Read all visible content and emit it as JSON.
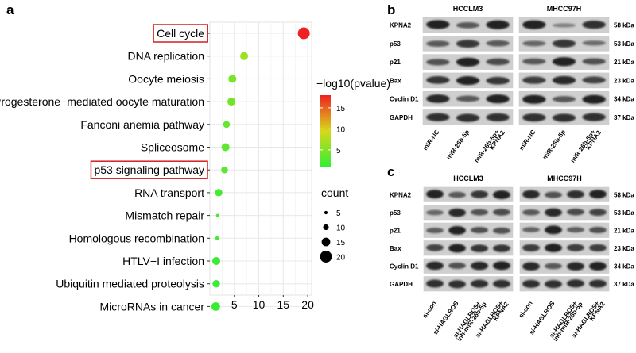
{
  "panel_labels": {
    "a": "a",
    "b": "b",
    "c": "c"
  },
  "chart_data": {
    "type": "scatter",
    "title": "",
    "xlabel": "",
    "ylabel": "",
    "xlim": [
      0,
      20
    ],
    "x_ticks": [
      "5",
      "10",
      "15",
      "20"
    ],
    "x_tick_values": [
      5,
      10,
      15,
      20
    ],
    "categories": [
      "Cell cycle",
      "DNA replication",
      "Oocyte meiosis",
      "Progesterone−mediated oocyte maturation",
      "Fanconi anemia pathway",
      "Spliceosome",
      "p53 signaling pathway",
      "RNA transport",
      "Mismatch repair",
      "Homologous recombination",
      "HTLV−I infection",
      "Ubiquitin mediated proteolysis",
      "MicroRNAs in cancer"
    ],
    "points": [
      {
        "term": "Cell cycle",
        "x": 19.2,
        "count": 20,
        "neglog10p": 18,
        "boxed": true
      },
      {
        "term": "DNA replication",
        "x": 7.0,
        "count": 14,
        "neglog10p": 6.5
      },
      {
        "term": "Oocyte meiosis",
        "x": 4.6,
        "count": 14,
        "neglog10p": 4.5
      },
      {
        "term": "Progesterone−mediated oocyte maturation",
        "x": 4.4,
        "count": 14,
        "neglog10p": 4.3
      },
      {
        "term": "Fanconi anemia pathway",
        "x": 3.4,
        "count": 12,
        "neglog10p": 3.4
      },
      {
        "term": "Spliceosome",
        "x": 3.2,
        "count": 14,
        "neglog10p": 3.2
      },
      {
        "term": "p53 signaling pathway",
        "x": 3.0,
        "count": 12,
        "neglog10p": 3.0,
        "boxed": true
      },
      {
        "term": "RNA transport",
        "x": 1.8,
        "count": 13,
        "neglog10p": 1.8
      },
      {
        "term": "Mismatch repair",
        "x": 1.6,
        "count": 5,
        "neglog10p": 1.6
      },
      {
        "term": "Homologous recombination",
        "x": 1.5,
        "count": 6,
        "neglog10p": 1.5
      },
      {
        "term": "HTLV−I infection",
        "x": 1.3,
        "count": 14,
        "neglog10p": 1.3
      },
      {
        "term": "Ubiquitin mediated proteolysis",
        "x": 1.3,
        "count": 13,
        "neglog10p": 1.3
      },
      {
        "term": "MicroRNAs in cancer",
        "x": 1.2,
        "count": 15,
        "neglog10p": 1.2
      }
    ],
    "color_legend": {
      "title": "−log10(pvalue)",
      "ticks": [
        "15",
        "10",
        "5"
      ],
      "tick_values": [
        15,
        10,
        5
      ],
      "range": [
        1,
        18
      ],
      "low_color": "#33ee33",
      "high_color": "#ee2222"
    },
    "size_legend": {
      "title": "count",
      "labels": [
        "5",
        "10",
        "15",
        "20"
      ],
      "values": [
        5,
        10,
        15,
        20
      ]
    }
  },
  "blot_b": {
    "groups": [
      "HCCLM3",
      "MHCC97H"
    ],
    "rows": [
      "KPNA2",
      "p53",
      "p21",
      "Bax",
      "Cyclin D1",
      "GAPDH"
    ],
    "sizes": [
      "58 kDa",
      "53 kDa",
      "21 kDa",
      "23 kDa",
      "34 kDa",
      "37 kDa"
    ],
    "lanes": [
      "miR-NC",
      "miR-26b-5p",
      "miR-26b-5p+",
      "miR-NC",
      "miR-26b-5p",
      "miR-26b-5p+"
    ],
    "lanes2": [
      "",
      "",
      "KPNA2",
      "",
      "",
      "KPNA2"
    ]
  },
  "blot_c": {
    "groups": [
      "HCCLM3",
      "MHCC97H"
    ],
    "rows": [
      "KPNA2",
      "p53",
      "p21",
      "Bax",
      "Cyclin D1",
      "GAPDH"
    ],
    "sizes": [
      "58 kDa",
      "53 kDa",
      "21 kDa",
      "23 kDa",
      "34 kDa",
      "37 kDa"
    ],
    "lanes": [
      "si-con",
      "si-HAGLROS",
      "si-HAGLROS+",
      "si-HAGLROS+",
      "si-con",
      "si-HAGLROS",
      "si-HAGLROS+",
      "si-HAGLROS+"
    ],
    "lanes2": [
      "",
      "",
      "inh-miR-26b-5p",
      "KPNA2",
      "",
      "",
      "inh-miR-26b-5p",
      "KPNA2"
    ]
  },
  "colors": {
    "blot_bg": "#cfcfcf",
    "band": "#1a1a1a",
    "box": "#d42020",
    "grid": "#e8e8e8",
    "panel_border": "#cccccc"
  }
}
